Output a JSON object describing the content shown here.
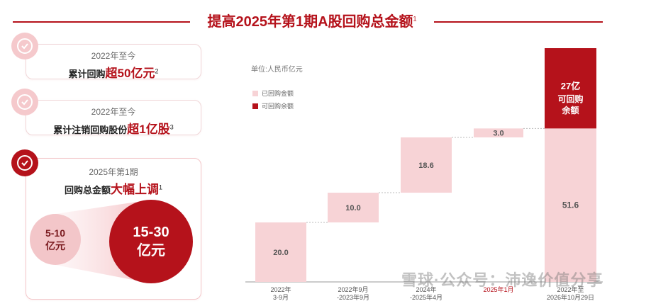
{
  "title": {
    "text": "提高2025年第1期A股回购总金额",
    "sup": "1"
  },
  "cards": [
    {
      "line1": "2022年至今",
      "prefix": "累计回购",
      "highlight": "超50亿元",
      "sup": "2"
    },
    {
      "line1": "2022年至今",
      "prefix": "累计注销回购股份",
      "highlight": "超1亿股",
      "sup": "3"
    },
    {
      "line1": "2025年第1期",
      "prefix": "回购总金额",
      "highlight": "大幅上调",
      "sup": "1"
    }
  ],
  "compare": {
    "old_line1": "5-10",
    "old_line2": "亿元",
    "new_line1": "15-30",
    "new_line2": "亿元"
  },
  "chart": {
    "unit": "单位:人民币亿元",
    "legend": [
      {
        "label": "已回购金额",
        "color": "#f7d3d6"
      },
      {
        "label": "可回购余额",
        "color": "#b5121b"
      }
    ]
  },
  "chart_data": {
    "type": "bar",
    "subtype": "waterfall",
    "categories": [
      [
        "2022年",
        "3-9月"
      ],
      [
        "2022年9月",
        "-2023年9月"
      ],
      [
        "2024年",
        "-2025年4月"
      ],
      [
        "2025年1月"
      ],
      [
        "2022年至",
        "2026年10月29日"
      ]
    ],
    "repurchased": [
      20.0,
      10.0,
      18.6,
      3.0,
      51.6
    ],
    "remaining": {
      "value": 27,
      "label": [
        "27亿",
        "可回购",
        "余额"
      ]
    },
    "ylim": [
      0,
      80
    ]
  },
  "watermark": "雪球·公众号：沛逸价值分享"
}
